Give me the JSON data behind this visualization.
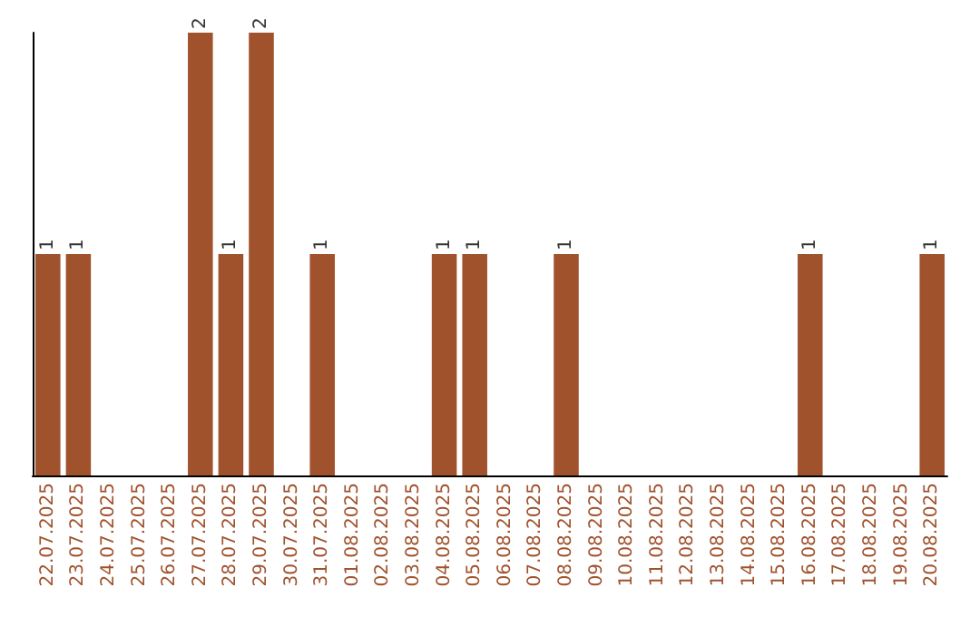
{
  "chart_data": {
    "type": "bar",
    "categories": [
      "22.07.2025",
      "23.07.2025",
      "24.07.2025",
      "25.07.2025",
      "26.07.2025",
      "27.07.2025",
      "28.07.2025",
      "29.07.2025",
      "30.07.2025",
      "31.07.2025",
      "01.08.2025",
      "02.08.2025",
      "03.08.2025",
      "04.08.2025",
      "05.08.2025",
      "06.08.2025",
      "07.08.2025",
      "08.08.2025",
      "09.08.2025",
      "10.08.2025",
      "11.08.2025",
      "12.08.2025",
      "13.08.2025",
      "14.08.2025",
      "15.08.2025",
      "16.08.2025",
      "17.08.2025",
      "18.08.2025",
      "19.08.2025",
      "20.08.2025"
    ],
    "values": [
      1,
      1,
      0,
      0,
      0,
      2,
      1,
      2,
      0,
      1,
      0,
      0,
      0,
      1,
      1,
      0,
      0,
      1,
      0,
      0,
      0,
      0,
      0,
      0,
      0,
      1,
      0,
      0,
      0,
      1
    ],
    "value_labels": [
      "1",
      "1",
      null,
      null,
      null,
      "2",
      "1",
      "2",
      null,
      "1",
      null,
      null,
      null,
      "1",
      "1",
      null,
      null,
      "1",
      null,
      null,
      null,
      null,
      null,
      null,
      null,
      "1",
      null,
      null,
      null,
      "1"
    ],
    "color": "#a0522d",
    "tick_labels": "x"
  }
}
